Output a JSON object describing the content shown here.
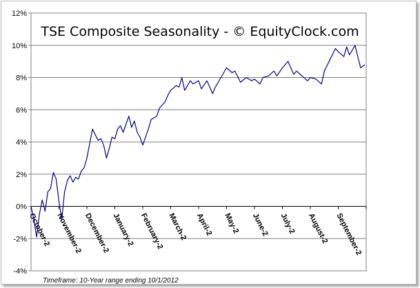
{
  "chart_data": {
    "type": "line",
    "title": "TSE Composite Seasonality - © EquityClock.com",
    "footnote": "Timeframe: 10-Year range ending 10/1/2012",
    "xlabel": "",
    "ylabel": "",
    "ylim": [
      -4,
      12
    ],
    "y_ticks": [
      "-4%",
      "-2%",
      "0%",
      "2%",
      "4%",
      "6%",
      "8%",
      "10%",
      "12%"
    ],
    "y_tick_values": [
      -4,
      -2,
      0,
      2,
      4,
      6,
      8,
      10,
      12
    ],
    "x_ticks": [
      "October-2",
      "November-2",
      "December-2",
      "January-2",
      "February-2",
      "March-2",
      "April-2",
      "May-2",
      "June-2",
      "July-2",
      "August-2",
      "September-2"
    ],
    "grid": true,
    "line_color": "#00008b",
    "series": [
      {
        "x_unit": "month index (0 = October-2)",
        "x": [
          0,
          0.1,
          0.2,
          0.3,
          0.4,
          0.5,
          0.6,
          0.7,
          0.8,
          0.9,
          1.0,
          1.1,
          1.2,
          1.3,
          1.4,
          1.5,
          1.6,
          1.7,
          1.8,
          1.9,
          2.0,
          2.2,
          2.4,
          2.5,
          2.6,
          2.7,
          2.8,
          2.9,
          3.0,
          3.1,
          3.2,
          3.3,
          3.5,
          3.6,
          3.7,
          3.8,
          3.9,
          4.0,
          4.2,
          4.3,
          4.5,
          4.6,
          4.8,
          4.9,
          5.0,
          5.2,
          5.3,
          5.4,
          5.5,
          5.7,
          5.8,
          6.0,
          6.1,
          6.3,
          6.5,
          6.6,
          6.8,
          7.0,
          7.2,
          7.3,
          7.5,
          7.7,
          7.9,
          8.0,
          8.2,
          8.3,
          8.5,
          8.7,
          8.8,
          9.0,
          9.2,
          9.4,
          9.5,
          9.7,
          9.9,
          10.0,
          10.2,
          10.4,
          10.5,
          10.7,
          10.9,
          11.0,
          11.2,
          11.3,
          11.4,
          11.6,
          11.7,
          11.8,
          11.95
        ],
        "y": [
          0.0,
          -0.8,
          -1.9,
          -0.5,
          0.4,
          -0.3,
          0.9,
          1.1,
          2.1,
          1.7,
          0.3,
          -0.8,
          0.9,
          1.6,
          1.9,
          1.5,
          1.8,
          1.7,
          2.2,
          2.4,
          3.0,
          4.8,
          4.1,
          4.2,
          3.8,
          3.0,
          3.6,
          4.3,
          4.2,
          4.8,
          5.0,
          4.6,
          5.6,
          4.9,
          5.3,
          4.6,
          4.3,
          3.8,
          4.8,
          5.4,
          5.6,
          6.1,
          6.5,
          6.9,
          7.2,
          7.5,
          7.4,
          8.0,
          7.2,
          7.8,
          7.6,
          7.8,
          7.3,
          7.8,
          7.0,
          7.4,
          8.0,
          8.6,
          8.3,
          8.4,
          7.7,
          8.0,
          7.8,
          7.9,
          7.6,
          8.0,
          8.1,
          8.4,
          8.1,
          8.6,
          9.0,
          8.2,
          8.4,
          8.1,
          7.8,
          8.0,
          7.9,
          7.6,
          8.4,
          9.1,
          9.8,
          9.6,
          9.3,
          9.9,
          9.4,
          10.0,
          9.3,
          8.6,
          8.8
        ]
      }
    ]
  }
}
